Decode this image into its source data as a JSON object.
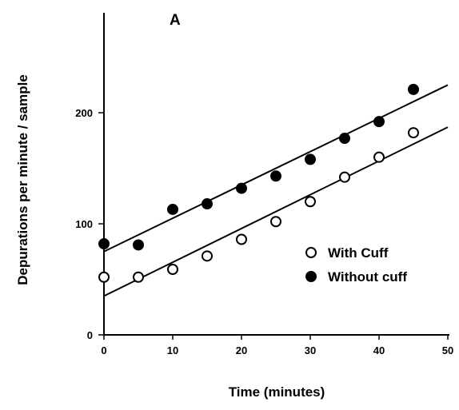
{
  "chart_data": {
    "type": "scatter",
    "panel_label": "A",
    "xlabel": "Time (minutes)",
    "ylabel": "Depurations per minute / sample",
    "xlim": [
      0,
      50
    ],
    "ylim": [
      0,
      290
    ],
    "xticks": [
      0,
      10,
      20,
      30,
      40,
      50
    ],
    "yticks": [
      0,
      100,
      200
    ],
    "grid": false,
    "legend_position": "right",
    "series": [
      {
        "name": "With Cuff",
        "marker": "open-circle",
        "color": "#000000",
        "x": [
          0,
          5,
          10,
          15,
          20,
          25,
          30,
          35,
          40,
          45
        ],
        "y": [
          52,
          52,
          59,
          71,
          86,
          102,
          120,
          142,
          160,
          182
        ],
        "fit_line": {
          "x": [
            0,
            50
          ],
          "y": [
            35,
            187
          ]
        }
      },
      {
        "name": "Without cuff",
        "marker": "filled-circle",
        "color": "#000000",
        "x": [
          0,
          5,
          10,
          15,
          20,
          25,
          30,
          35,
          40,
          45
        ],
        "y": [
          82,
          81,
          113,
          118,
          132,
          143,
          158,
          177,
          192,
          221
        ],
        "fit_line": {
          "x": [
            0,
            50
          ],
          "y": [
            75,
            225
          ]
        }
      }
    ]
  }
}
